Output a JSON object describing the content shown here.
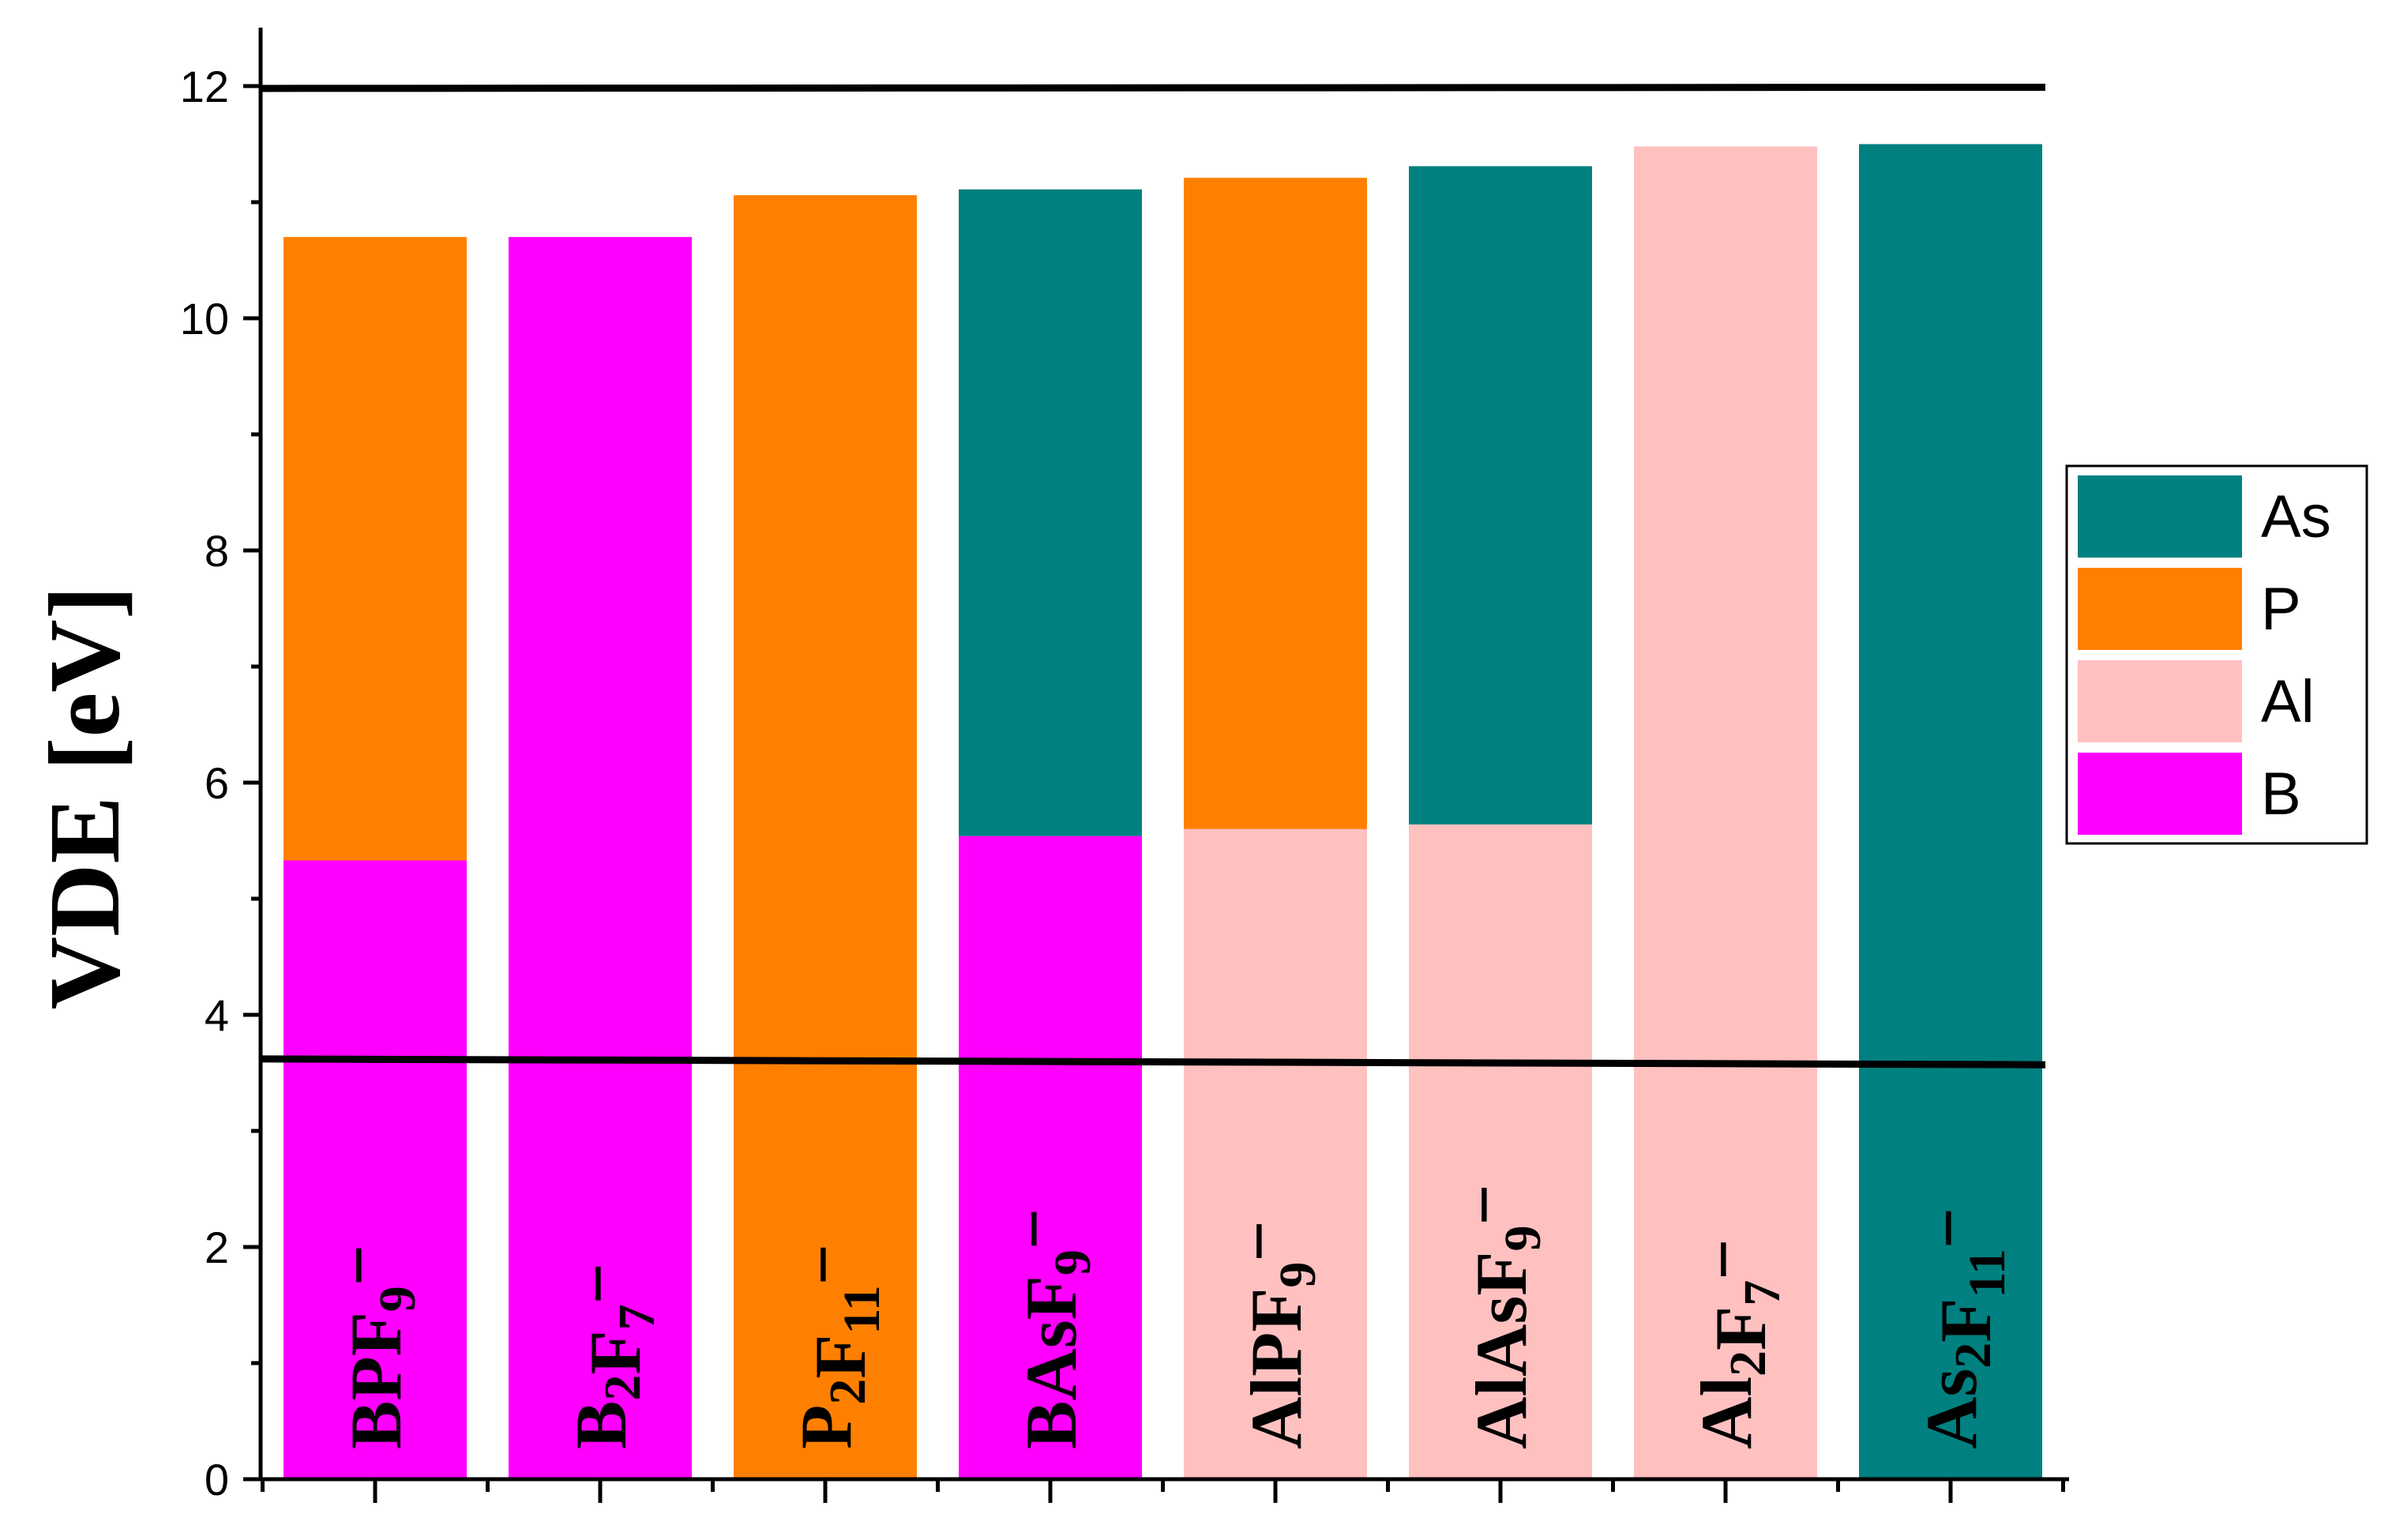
{
  "chart_data": {
    "type": "bar",
    "ylabel": "VDE [eV]",
    "xlabel": "",
    "ylim": [
      0,
      12.5
    ],
    "yticks": [
      0,
      2,
      4,
      6,
      8,
      10,
      12
    ],
    "grid": false,
    "legend_position": "right",
    "colors": {
      "As": "#008080",
      "P": "#ff8000",
      "Al": "#ffc0c0",
      "B": "#ff00ff"
    },
    "legend": [
      "As",
      "P",
      "Al",
      "B"
    ],
    "bars": [
      {
        "label": "BPF9−",
        "segments": [
          {
            "element": "B",
            "to": 5.33
          },
          {
            "element": "P",
            "to": 10.7
          }
        ]
      },
      {
        "label": "B2F7−",
        "segments": [
          {
            "element": "B",
            "to": 10.7
          }
        ]
      },
      {
        "label": "P2F11−",
        "segments": [
          {
            "element": "P",
            "to": 11.06
          }
        ]
      },
      {
        "label": "BAsF9−",
        "segments": [
          {
            "element": "B",
            "to": 5.54
          },
          {
            "element": "As",
            "to": 11.11
          }
        ]
      },
      {
        "label": "AlPF9−",
        "segments": [
          {
            "element": "Al",
            "to": 5.6
          },
          {
            "element": "P",
            "to": 11.21
          }
        ]
      },
      {
        "label": "AlAsF9−",
        "segments": [
          {
            "element": "Al",
            "to": 5.64
          },
          {
            "element": "As",
            "to": 11.31
          }
        ]
      },
      {
        "label": "Al2F7−",
        "segments": [
          {
            "element": "Al",
            "to": 11.48
          }
        ]
      },
      {
        "label": "As2F11−",
        "segments": [
          {
            "element": "As",
            "to": 11.5
          }
        ]
      }
    ],
    "reference_lines": [
      {
        "from": 11.98,
        "to": 11.99
      },
      {
        "from": 3.62,
        "to": 3.57
      }
    ]
  }
}
